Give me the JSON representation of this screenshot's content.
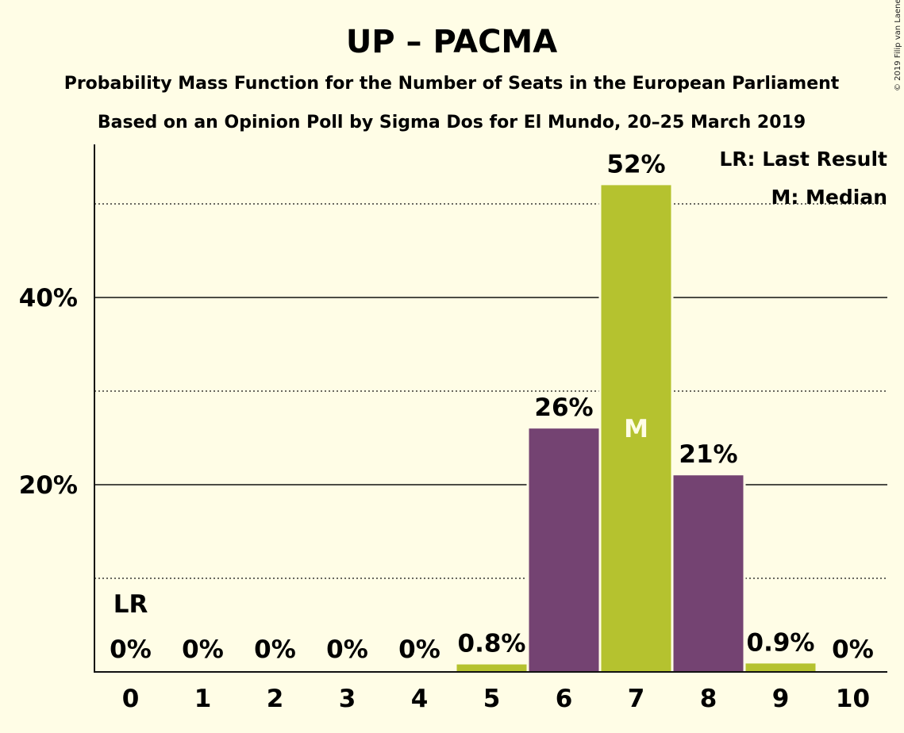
{
  "title": "UP – PACMA",
  "subtitle1": "Probability Mass Function for the Number of Seats in the European Parliament",
  "subtitle2": "Based on an Opinion Poll by Sigma Dos for El Mundo, 20–25 March 2019",
  "copyright": "© 2019 Filip van Laenen",
  "legend": {
    "last_result": "LR: Last Result",
    "median": "M: Median"
  },
  "colors": {
    "background": "#FFFDE6",
    "green": "#B5C22F",
    "purple": "#744372"
  },
  "chart_data": {
    "type": "bar",
    "categories": [
      "0",
      "1",
      "2",
      "3",
      "4",
      "5",
      "6",
      "7",
      "8",
      "9",
      "10"
    ],
    "values": [
      0,
      0,
      0,
      0,
      0,
      0.8,
      26,
      52,
      21,
      0.9,
      0
    ],
    "bar_colors": [
      "green",
      "green",
      "green",
      "green",
      "green",
      "green",
      "purple",
      "green",
      "purple",
      "green",
      "green"
    ],
    "data_labels": [
      "0%",
      "0%",
      "0%",
      "0%",
      "0%",
      "0.8%",
      "26%",
      "52%",
      "21%",
      "0.9%",
      "0%"
    ],
    "y_ticks": [
      20,
      40
    ],
    "y_tick_labels": [
      "20%",
      "40%"
    ],
    "y_minor_gridlines": [
      10,
      30,
      50
    ],
    "ylim": [
      0,
      56
    ],
    "last_result_seat": 0,
    "last_result_label": "LR",
    "median_seat": 7,
    "median_label": "M",
    "xlabel": "",
    "ylabel": "",
    "grid": true,
    "legend_position": "top-right"
  }
}
